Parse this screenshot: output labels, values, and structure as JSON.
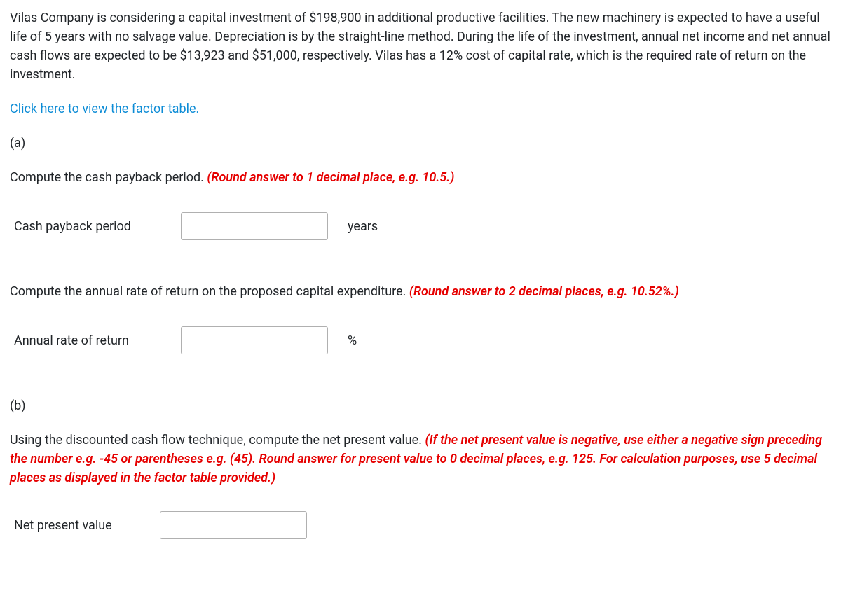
{
  "intro": "Vilas Company is considering a capital investment of $198,900 in additional productive facilities. The new machinery is expected to have a useful life of 5 years with no salvage value. Depreciation is by the straight-line method. During the life of the investment, annual net income and net annual cash flows are expected to be $13,923 and $51,000, respectively. Vilas has a 12% cost of capital rate, which is the required rate of return on the investment.",
  "link_text": "Click here to view the factor table.",
  "part_a": {
    "label": "(a)",
    "prompt1_black": "Compute the cash payback period. ",
    "prompt1_red": "(Round answer to 1 decimal place, e.g. 10.5.)",
    "payback_label": "Cash payback period",
    "payback_value": "",
    "payback_unit": "years",
    "prompt2_black": "Compute the annual rate of return on the proposed capital expenditure. ",
    "prompt2_red": "(Round answer to 2 decimal places, e.g. 10.52%.)",
    "arr_label": "Annual rate of return",
    "arr_value": "",
    "arr_unit": "%"
  },
  "part_b": {
    "label": "(b)",
    "npv_black": "Using the discounted cash flow technique, compute the net present value. ",
    "npv_red": "(If the net present value is negative, use either a negative sign preceding the number e.g. -45 or parentheses e.g. (45). Round answer for present value to 0 decimal places, e.g. 125. For calculation purposes, use 5 decimal places as displayed in the factor table provided.)",
    "npv_label": "Net present value",
    "npv_value": ""
  },
  "colors": {
    "text": "#212529",
    "link": "#0d8cd6",
    "red": "#e60000",
    "input_border": "#b0b0b0",
    "background": "#ffffff"
  }
}
